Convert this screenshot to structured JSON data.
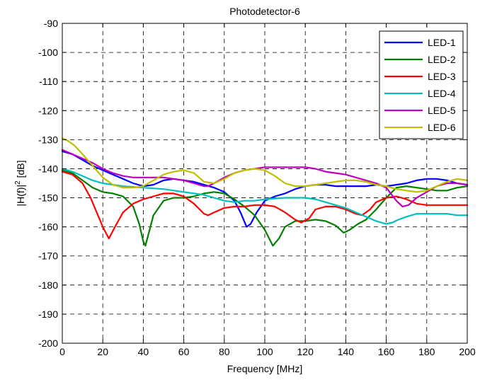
{
  "chart_data": {
    "type": "line",
    "title": "Photodetector-6",
    "xlabel": "Frequency [MHz]",
    "ylabel_main": "|H(f)|",
    "ylabel_sup": "2",
    "ylabel_suffix": " [dB]",
    "xlim": [
      0,
      200
    ],
    "ylim": [
      -200,
      -90
    ],
    "xticks": [
      0,
      20,
      40,
      60,
      80,
      100,
      120,
      140,
      160,
      180,
      200
    ],
    "yticks": [
      -200,
      -190,
      -180,
      -170,
      -160,
      -150,
      -140,
      -130,
      -120,
      -110,
      -100,
      -90
    ],
    "grid": true,
    "legend_position": "top-right",
    "series": [
      {
        "name": "LED-1",
        "color": "#0000ff",
        "points": [
          [
            0,
            -134
          ],
          [
            5,
            -135
          ],
          [
            10,
            -137
          ],
          [
            15,
            -139
          ],
          [
            20,
            -140.5
          ],
          [
            25,
            -142
          ],
          [
            30,
            -143.5
          ],
          [
            35,
            -145
          ],
          [
            40,
            -146
          ],
          [
            45,
            -145.5
          ],
          [
            50,
            -144
          ],
          [
            55,
            -143.5
          ],
          [
            60,
            -144
          ],
          [
            65,
            -144.5
          ],
          [
            70,
            -145.5
          ],
          [
            75,
            -146.5
          ],
          [
            80,
            -148
          ],
          [
            85,
            -151
          ],
          [
            88,
            -155
          ],
          [
            91,
            -160
          ],
          [
            93,
            -159
          ],
          [
            96,
            -155
          ],
          [
            100,
            -151
          ],
          [
            105,
            -149.5
          ],
          [
            110,
            -148.5
          ],
          [
            115,
            -147
          ],
          [
            120,
            -146
          ],
          [
            125,
            -145.5
          ],
          [
            130,
            -145.5
          ],
          [
            135,
            -146
          ],
          [
            140,
            -146
          ],
          [
            145,
            -146
          ],
          [
            150,
            -146
          ],
          [
            155,
            -145.5
          ],
          [
            160,
            -146
          ],
          [
            165,
            -145.5
          ],
          [
            170,
            -145
          ],
          [
            175,
            -144
          ],
          [
            180,
            -143.5
          ],
          [
            185,
            -143.5
          ],
          [
            190,
            -144
          ],
          [
            195,
            -145
          ],
          [
            200,
            -145.5
          ]
        ]
      },
      {
        "name": "LED-2",
        "color": "#008000",
        "points": [
          [
            0,
            -140.5
          ],
          [
            5,
            -141.5
          ],
          [
            10,
            -144
          ],
          [
            15,
            -146.5
          ],
          [
            20,
            -148
          ],
          [
            25,
            -148.5
          ],
          [
            30,
            -149.5
          ],
          [
            35,
            -153
          ],
          [
            38,
            -159
          ],
          [
            40,
            -165
          ],
          [
            41,
            -166.5
          ],
          [
            42,
            -164
          ],
          [
            45,
            -156
          ],
          [
            50,
            -151
          ],
          [
            55,
            -150
          ],
          [
            60,
            -150
          ],
          [
            65,
            -149.5
          ],
          [
            70,
            -148.5
          ],
          [
            75,
            -148
          ],
          [
            80,
            -148.5
          ],
          [
            85,
            -150.5
          ],
          [
            90,
            -153
          ],
          [
            95,
            -156
          ],
          [
            100,
            -161
          ],
          [
            104,
            -166.5
          ],
          [
            107,
            -164
          ],
          [
            110,
            -160
          ],
          [
            115,
            -158
          ],
          [
            120,
            -158
          ],
          [
            125,
            -157.5
          ],
          [
            130,
            -158
          ],
          [
            135,
            -159.5
          ],
          [
            139,
            -162
          ],
          [
            142,
            -161
          ],
          [
            146,
            -159
          ],
          [
            150,
            -157.5
          ],
          [
            155,
            -154
          ],
          [
            160,
            -150
          ],
          [
            165,
            -146.5
          ],
          [
            170,
            -146
          ],
          [
            175,
            -146.5
          ],
          [
            180,
            -147
          ],
          [
            185,
            -147.5
          ],
          [
            190,
            -147.5
          ],
          [
            195,
            -146.5
          ],
          [
            200,
            -146
          ]
        ]
      },
      {
        "name": "LED-3",
        "color": "#ff0000",
        "points": [
          [
            0,
            -141
          ],
          [
            5,
            -142
          ],
          [
            10,
            -145
          ],
          [
            14,
            -150
          ],
          [
            17,
            -155
          ],
          [
            20,
            -160
          ],
          [
            23,
            -164
          ],
          [
            26,
            -160
          ],
          [
            30,
            -155
          ],
          [
            35,
            -152
          ],
          [
            40,
            -150.5
          ],
          [
            45,
            -149.5
          ],
          [
            50,
            -148.5
          ],
          [
            55,
            -148.5
          ],
          [
            60,
            -149.5
          ],
          [
            65,
            -152
          ],
          [
            70,
            -155.5
          ],
          [
            72,
            -156
          ],
          [
            75,
            -155
          ],
          [
            80,
            -153.5
          ],
          [
            85,
            -153
          ],
          [
            90,
            -153
          ],
          [
            95,
            -152.5
          ],
          [
            100,
            -152.5
          ],
          [
            105,
            -153
          ],
          [
            110,
            -155
          ],
          [
            115,
            -157.5
          ],
          [
            118,
            -158.5
          ],
          [
            122,
            -157
          ],
          [
            125,
            -154
          ],
          [
            130,
            -153
          ],
          [
            135,
            -153
          ],
          [
            140,
            -154
          ],
          [
            145,
            -155.5
          ],
          [
            148,
            -156
          ],
          [
            152,
            -154
          ],
          [
            155,
            -151.5
          ],
          [
            160,
            -150
          ],
          [
            165,
            -149.5
          ],
          [
            170,
            -150.5
          ],
          [
            175,
            -152
          ],
          [
            180,
            -152.5
          ],
          [
            190,
            -152.5
          ],
          [
            200,
            -152.5
          ]
        ]
      },
      {
        "name": "LED-4",
        "color": "#00bfbf",
        "points": [
          [
            0,
            -140
          ],
          [
            5,
            -141
          ],
          [
            10,
            -142.5
          ],
          [
            15,
            -144
          ],
          [
            20,
            -145
          ],
          [
            25,
            -145.5
          ],
          [
            30,
            -146
          ],
          [
            40,
            -146.5
          ],
          [
            50,
            -147
          ],
          [
            60,
            -148
          ],
          [
            70,
            -149
          ],
          [
            80,
            -151
          ],
          [
            85,
            -151.5
          ],
          [
            90,
            -151
          ],
          [
            95,
            -151
          ],
          [
            100,
            -150.5
          ],
          [
            110,
            -150
          ],
          [
            120,
            -150
          ],
          [
            125,
            -150.5
          ],
          [
            130,
            -151.5
          ],
          [
            135,
            -152.5
          ],
          [
            140,
            -153.5
          ],
          [
            145,
            -155
          ],
          [
            150,
            -156.5
          ],
          [
            155,
            -158
          ],
          [
            160,
            -159
          ],
          [
            163,
            -158.5
          ],
          [
            166,
            -157.5
          ],
          [
            170,
            -156.5
          ],
          [
            175,
            -155.5
          ],
          [
            180,
            -155.5
          ],
          [
            185,
            -155.5
          ],
          [
            190,
            -155.5
          ],
          [
            195,
            -156
          ],
          [
            200,
            -156
          ]
        ]
      },
      {
        "name": "LED-5",
        "color": "#bf00bf",
        "points": [
          [
            0,
            -133.5
          ],
          [
            5,
            -135
          ],
          [
            10,
            -136.5
          ],
          [
            15,
            -138
          ],
          [
            20,
            -140
          ],
          [
            25,
            -141.5
          ],
          [
            30,
            -142.5
          ],
          [
            35,
            -143
          ],
          [
            40,
            -143
          ],
          [
            45,
            -143
          ],
          [
            50,
            -143
          ],
          [
            55,
            -143.5
          ],
          [
            60,
            -144
          ],
          [
            65,
            -145
          ],
          [
            70,
            -146
          ],
          [
            72,
            -146
          ],
          [
            75,
            -145
          ],
          [
            80,
            -143
          ],
          [
            85,
            -141.5
          ],
          [
            90,
            -140.5
          ],
          [
            95,
            -140
          ],
          [
            100,
            -139.5
          ],
          [
            105,
            -139.5
          ],
          [
            110,
            -139.5
          ],
          [
            115,
            -139.5
          ],
          [
            120,
            -139.5
          ],
          [
            125,
            -140
          ],
          [
            130,
            -141
          ],
          [
            135,
            -141.5
          ],
          [
            140,
            -142
          ],
          [
            145,
            -143
          ],
          [
            150,
            -144
          ],
          [
            155,
            -145
          ],
          [
            160,
            -146.5
          ],
          [
            165,
            -151
          ],
          [
            168,
            -153
          ],
          [
            171,
            -152.5
          ],
          [
            175,
            -150
          ],
          [
            180,
            -148
          ],
          [
            185,
            -146
          ],
          [
            190,
            -145
          ],
          [
            195,
            -145
          ],
          [
            200,
            -145.5
          ]
        ]
      },
      {
        "name": "LED-6",
        "color": "#bfbf00",
        "points": [
          [
            0,
            -129.5
          ],
          [
            3,
            -130.5
          ],
          [
            6,
            -132
          ],
          [
            10,
            -135
          ],
          [
            15,
            -139
          ],
          [
            20,
            -143
          ],
          [
            25,
            -145.5
          ],
          [
            30,
            -146.5
          ],
          [
            35,
            -146.5
          ],
          [
            40,
            -146
          ],
          [
            45,
            -144
          ],
          [
            50,
            -142
          ],
          [
            55,
            -141
          ],
          [
            60,
            -140.5
          ],
          [
            65,
            -141.5
          ],
          [
            70,
            -144.5
          ],
          [
            75,
            -145
          ],
          [
            80,
            -143.5
          ],
          [
            85,
            -141.5
          ],
          [
            90,
            -140.5
          ],
          [
            95,
            -140
          ],
          [
            100,
            -140.5
          ],
          [
            105,
            -142.5
          ],
          [
            110,
            -145
          ],
          [
            115,
            -146
          ],
          [
            120,
            -146
          ],
          [
            125,
            -145.5
          ],
          [
            130,
            -145
          ],
          [
            135,
            -144.5
          ],
          [
            140,
            -144
          ],
          [
            145,
            -144
          ],
          [
            150,
            -144.5
          ],
          [
            155,
            -145.5
          ],
          [
            160,
            -146
          ],
          [
            165,
            -147
          ],
          [
            170,
            -147.5
          ],
          [
            175,
            -148
          ],
          [
            180,
            -147.5
          ],
          [
            185,
            -146
          ],
          [
            190,
            -144.5
          ],
          [
            195,
            -143.5
          ],
          [
            200,
            -144
          ]
        ]
      }
    ]
  }
}
